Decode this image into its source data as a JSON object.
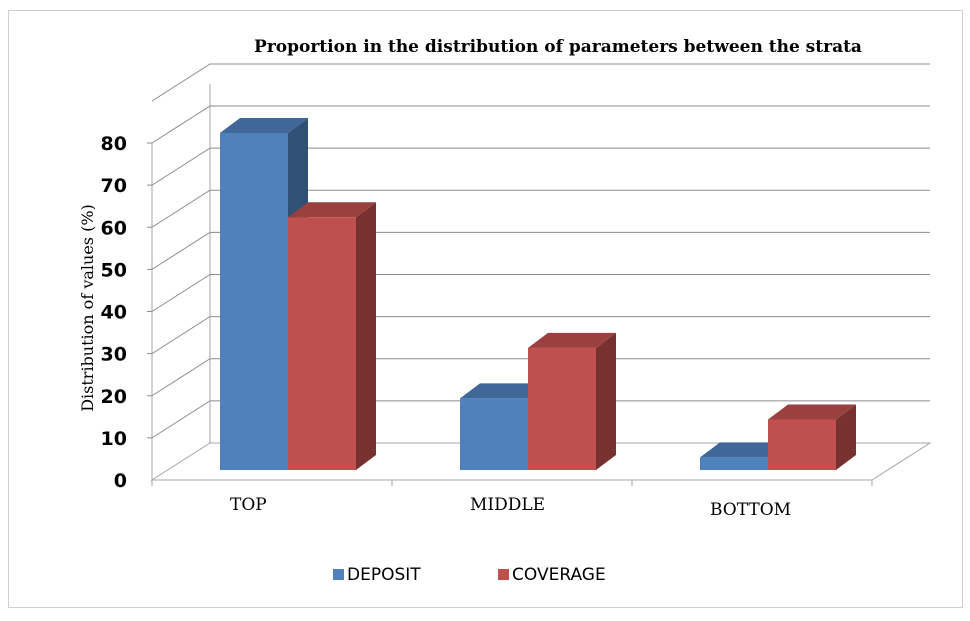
{
  "chart_data": {
    "type": "bar",
    "title": "Proportion in the distribution of parameters between the strata",
    "xlabel": "",
    "ylabel": "Distribution of values (%)",
    "categories": [
      "TOP",
      "MIDDLE",
      "BOTTOM"
    ],
    "ylim": [
      0,
      80
    ],
    "yticks": [
      "0",
      "10",
      "20",
      "30",
      "40",
      "50",
      "60",
      "70",
      "80"
    ],
    "grid": true,
    "legend_position": "bottom",
    "series": [
      {
        "name": "DEPOSIT",
        "values": [
          80,
          17,
          3
        ],
        "color": "#4f81bd"
      },
      {
        "name": "COVERAGE",
        "values": [
          60,
          29,
          12
        ],
        "color": "#c0504d"
      }
    ]
  }
}
